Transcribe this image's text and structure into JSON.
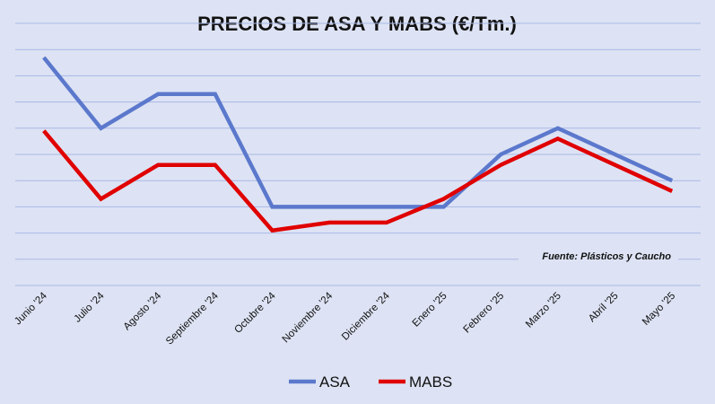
{
  "chart_data": {
    "type": "line",
    "title": "PRECIOS DE ASA Y MABS (€/Tm.)",
    "xlabel": "",
    "ylabel": "",
    "categories": [
      "Junio '24",
      "Julio '24",
      "Agosto '24",
      "Septiembre '24",
      "Octubre '24",
      "Noviembre '24",
      "Diciembre '24",
      "Enero '25",
      "Febrero '25",
      "Marzo '25",
      "Abril '25",
      "Mayo '25"
    ],
    "series": [
      {
        "name": "ASA",
        "color": "#5b78cc",
        "values": [
          7.7,
          5.0,
          6.3,
          6.3,
          2.0,
          2.0,
          2.0,
          2.0,
          4.0,
          5.0,
          4.0,
          3.0
        ]
      },
      {
        "name": "MABS",
        "color": "#e00000",
        "values": [
          4.9,
          2.3,
          3.6,
          3.6,
          1.1,
          1.4,
          1.4,
          2.3,
          3.6,
          4.6,
          3.6,
          2.6
        ]
      }
    ],
    "ylim": [
      -1,
      9
    ],
    "grid": true,
    "legend": "bottom-center",
    "annotation": "Fuente: Plásticos y Caucho"
  }
}
